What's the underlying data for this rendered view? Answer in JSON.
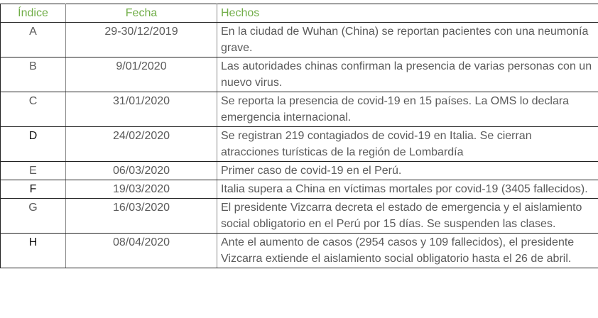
{
  "table": {
    "headers": {
      "index": "Índice",
      "date": "Fecha",
      "events": "Hechos"
    },
    "header_color": "#70ad47",
    "rows": [
      {
        "index": "A",
        "date": "29-30/12/2019",
        "event": "En la ciudad de Wuhan (China) se reportan pacientes con una neumonía grave."
      },
      {
        "index": "B",
        "date": "9/01/2020",
        "event": "Las autoridades chinas confirman la presencia de varias personas con un nuevo virus."
      },
      {
        "index": "C",
        "date": "31/01/2020",
        "event": "Se reporta la presencia de covid-19 en 15 países. La OMS lo declara emergencia internacional."
      },
      {
        "index": "D",
        "date": "24/02/2020",
        "event": "Se registran 219 contagiados de covid-19 en Italia. Se cierran atracciones turísticas de la región de Lombardía"
      },
      {
        "index": "E",
        "date": "06/03/2020",
        "event": "Primer caso de covid-19 en el Perú."
      },
      {
        "index": "F",
        "date": "19/03/2020",
        "event": "Italia supera a China en víctimas mortales por covid-19 (3405 fallecidos)."
      },
      {
        "index": "G",
        "date": "16/03/2020",
        "event": "El presidente Vizcarra decreta el estado de emergencia y el aislamiento social obligatorio en el Perú por 15 días. Se suspenden las clases."
      },
      {
        "index": "H",
        "date": "08/04/2020",
        "event": "Ante el aumento de casos (2954 casos y 109 fallecidos), el presidente Vizcarra extiende el aislamiento social obligatorio hasta el 26 de abril."
      }
    ]
  }
}
